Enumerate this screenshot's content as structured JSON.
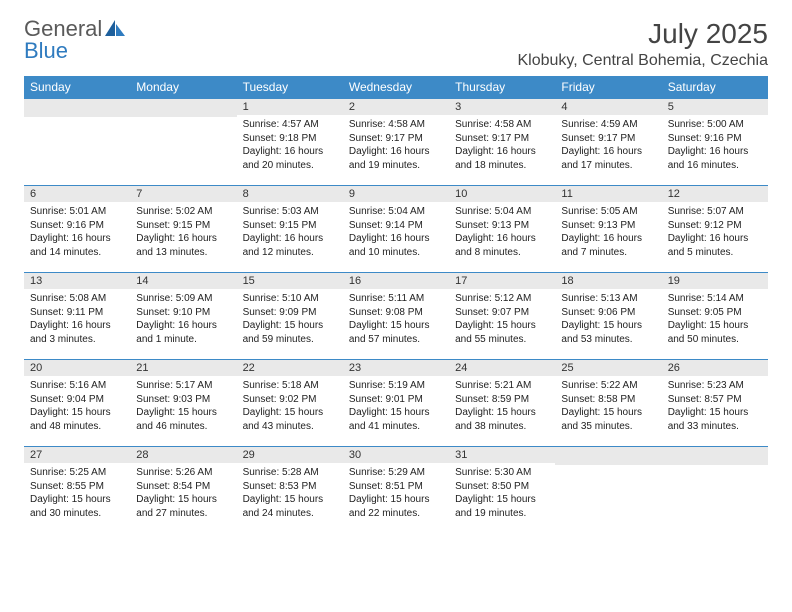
{
  "logo": {
    "word1": "General",
    "word2": "Blue"
  },
  "title": "July 2025",
  "location": "Klobuky, Central Bohemia, Czechia",
  "colors": {
    "header_bg": "#3d8ac7",
    "header_text": "#ffffff",
    "daynum_bg": "#e9e9e9",
    "border": "#3d8ac7",
    "logo_gray": "#5a5a5a",
    "logo_blue": "#2f7bbf",
    "text": "#222222",
    "title_color": "#444444"
  },
  "columns": [
    "Sunday",
    "Monday",
    "Tuesday",
    "Wednesday",
    "Thursday",
    "Friday",
    "Saturday"
  ],
  "weeks": [
    [
      null,
      null,
      {
        "n": "1",
        "sr": "4:57 AM",
        "ss": "9:18 PM",
        "dl": "16 hours and 20 minutes."
      },
      {
        "n": "2",
        "sr": "4:58 AM",
        "ss": "9:17 PM",
        "dl": "16 hours and 19 minutes."
      },
      {
        "n": "3",
        "sr": "4:58 AM",
        "ss": "9:17 PM",
        "dl": "16 hours and 18 minutes."
      },
      {
        "n": "4",
        "sr": "4:59 AM",
        "ss": "9:17 PM",
        "dl": "16 hours and 17 minutes."
      },
      {
        "n": "5",
        "sr": "5:00 AM",
        "ss": "9:16 PM",
        "dl": "16 hours and 16 minutes."
      }
    ],
    [
      {
        "n": "6",
        "sr": "5:01 AM",
        "ss": "9:16 PM",
        "dl": "16 hours and 14 minutes."
      },
      {
        "n": "7",
        "sr": "5:02 AM",
        "ss": "9:15 PM",
        "dl": "16 hours and 13 minutes."
      },
      {
        "n": "8",
        "sr": "5:03 AM",
        "ss": "9:15 PM",
        "dl": "16 hours and 12 minutes."
      },
      {
        "n": "9",
        "sr": "5:04 AM",
        "ss": "9:14 PM",
        "dl": "16 hours and 10 minutes."
      },
      {
        "n": "10",
        "sr": "5:04 AM",
        "ss": "9:13 PM",
        "dl": "16 hours and 8 minutes."
      },
      {
        "n": "11",
        "sr": "5:05 AM",
        "ss": "9:13 PM",
        "dl": "16 hours and 7 minutes."
      },
      {
        "n": "12",
        "sr": "5:07 AM",
        "ss": "9:12 PM",
        "dl": "16 hours and 5 minutes."
      }
    ],
    [
      {
        "n": "13",
        "sr": "5:08 AM",
        "ss": "9:11 PM",
        "dl": "16 hours and 3 minutes."
      },
      {
        "n": "14",
        "sr": "5:09 AM",
        "ss": "9:10 PM",
        "dl": "16 hours and 1 minute."
      },
      {
        "n": "15",
        "sr": "5:10 AM",
        "ss": "9:09 PM",
        "dl": "15 hours and 59 minutes."
      },
      {
        "n": "16",
        "sr": "5:11 AM",
        "ss": "9:08 PM",
        "dl": "15 hours and 57 minutes."
      },
      {
        "n": "17",
        "sr": "5:12 AM",
        "ss": "9:07 PM",
        "dl": "15 hours and 55 minutes."
      },
      {
        "n": "18",
        "sr": "5:13 AM",
        "ss": "9:06 PM",
        "dl": "15 hours and 53 minutes."
      },
      {
        "n": "19",
        "sr": "5:14 AM",
        "ss": "9:05 PM",
        "dl": "15 hours and 50 minutes."
      }
    ],
    [
      {
        "n": "20",
        "sr": "5:16 AM",
        "ss": "9:04 PM",
        "dl": "15 hours and 48 minutes."
      },
      {
        "n": "21",
        "sr": "5:17 AM",
        "ss": "9:03 PM",
        "dl": "15 hours and 46 minutes."
      },
      {
        "n": "22",
        "sr": "5:18 AM",
        "ss": "9:02 PM",
        "dl": "15 hours and 43 minutes."
      },
      {
        "n": "23",
        "sr": "5:19 AM",
        "ss": "9:01 PM",
        "dl": "15 hours and 41 minutes."
      },
      {
        "n": "24",
        "sr": "5:21 AM",
        "ss": "8:59 PM",
        "dl": "15 hours and 38 minutes."
      },
      {
        "n": "25",
        "sr": "5:22 AM",
        "ss": "8:58 PM",
        "dl": "15 hours and 35 minutes."
      },
      {
        "n": "26",
        "sr": "5:23 AM",
        "ss": "8:57 PM",
        "dl": "15 hours and 33 minutes."
      }
    ],
    [
      {
        "n": "27",
        "sr": "5:25 AM",
        "ss": "8:55 PM",
        "dl": "15 hours and 30 minutes."
      },
      {
        "n": "28",
        "sr": "5:26 AM",
        "ss": "8:54 PM",
        "dl": "15 hours and 27 minutes."
      },
      {
        "n": "29",
        "sr": "5:28 AM",
        "ss": "8:53 PM",
        "dl": "15 hours and 24 minutes."
      },
      {
        "n": "30",
        "sr": "5:29 AM",
        "ss": "8:51 PM",
        "dl": "15 hours and 22 minutes."
      },
      {
        "n": "31",
        "sr": "5:30 AM",
        "ss": "8:50 PM",
        "dl": "15 hours and 19 minutes."
      },
      null,
      null
    ]
  ],
  "labels": {
    "sunrise": "Sunrise: ",
    "sunset": "Sunset: ",
    "daylight": "Daylight: "
  }
}
